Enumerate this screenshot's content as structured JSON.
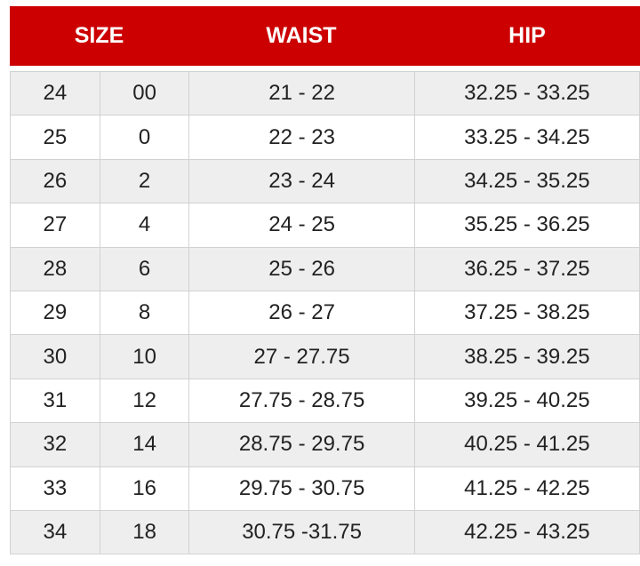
{
  "colors": {
    "header_bg": "#cc0000",
    "header_text": "#ffffff",
    "row_alt": "#eeeeee"
  },
  "header": {
    "size": "SIZE",
    "waist": "WAIST",
    "hip": "HIP"
  },
  "rows": [
    [
      "24",
      "00",
      "21 - 22",
      "32.25 - 33.25"
    ],
    [
      "25",
      "0",
      "22 - 23",
      "33.25 - 34.25"
    ],
    [
      "26",
      "2",
      "23 - 24",
      "34.25 - 35.25"
    ],
    [
      "27",
      "4",
      "24 - 25",
      "35.25 - 36.25"
    ],
    [
      "28",
      "6",
      "25 - 26",
      "36.25 - 37.25"
    ],
    [
      "29",
      "8",
      "26 - 27",
      "37.25 - 38.25"
    ],
    [
      "30",
      "10",
      "27 - 27.75",
      "38.25 - 39.25"
    ],
    [
      "31",
      "12",
      "27.75 - 28.75",
      "39.25 - 40.25"
    ],
    [
      "32",
      "14",
      "28.75 - 29.75",
      "40.25 - 41.25"
    ],
    [
      "33",
      "16",
      "29.75 - 30.75",
      "41.25 - 42.25"
    ],
    [
      "34",
      "18",
      "30.75 -31.75",
      "42.25 - 43.25"
    ]
  ]
}
